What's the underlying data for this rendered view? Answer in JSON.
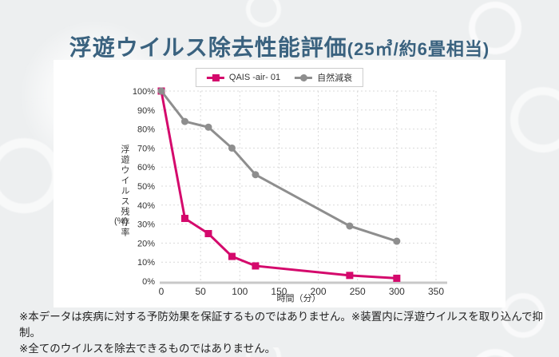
{
  "title": {
    "main": "浮遊ウイルス除去性能評価",
    "sub": "(25㎥/約6畳相当)"
  },
  "colors": {
    "title": "#3a627f",
    "qais_series": "#d4096c",
    "natural_series": "#8e8e8e",
    "panel_bg": "#ffffff",
    "page_bg": "#edeff0",
    "grid": "#d9d9d9",
    "axis": "#c8c8c8",
    "text": "#333333"
  },
  "legend": [
    {
      "label": "QAIS -air- 01",
      "color": "#d4096c",
      "marker": "square"
    },
    {
      "label": "自然減衰",
      "color": "#8e8e8e",
      "marker": "circle"
    }
  ],
  "chart_data": {
    "type": "line",
    "title": "浮遊ウイルス除去性能評価(25㎥/約6畳相当)",
    "x": [
      0,
      30,
      60,
      90,
      120,
      240,
      300
    ],
    "series": [
      {
        "name": "QAIS -air- 01",
        "color": "#d4096c",
        "marker": "square",
        "values": [
          100,
          33,
          25,
          13,
          8,
          3,
          1.5
        ]
      },
      {
        "name": "自然減衰",
        "color": "#8e8e8e",
        "marker": "circle",
        "values": [
          100,
          84,
          81,
          70,
          56,
          29,
          21
        ]
      }
    ],
    "xlabel": "時間（分）",
    "ylabel": "浮遊ウイルス残存率",
    "ylabel_unit": "(%)",
    "xlim": [
      0,
      350
    ],
    "ylim": [
      0,
      100
    ],
    "x_ticks": [
      0,
      50,
      100,
      150,
      200,
      250,
      300,
      350
    ],
    "y_ticks": [
      0,
      10,
      20,
      30,
      40,
      50,
      60,
      70,
      80,
      90,
      100
    ],
    "y_tick_suffix": "%",
    "grid": true,
    "legend_position": "top-center"
  },
  "footnotes": [
    "※本データは疾病に対する予防効果を保証するものではありません。※装置内に浮遊ウイルスを取り込んで抑制。",
    "※全てのウイルスを除去できるものではありません。"
  ]
}
